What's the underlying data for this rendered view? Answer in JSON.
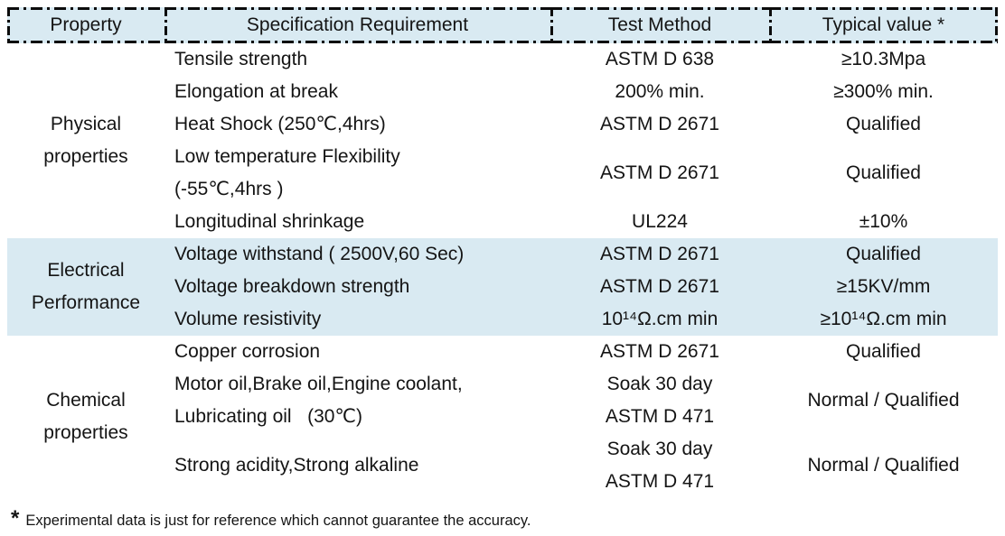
{
  "header": {
    "columns": [
      "Property",
      "Specification Requirement",
      "Test Method",
      "Typical value *"
    ]
  },
  "sections": [
    {
      "property": "Physical\nproperties",
      "highlighted": false,
      "rows": [
        {
          "spec": "Tensile strength",
          "method": "ASTM D 638",
          "value": "≥10.3Mpa"
        },
        {
          "spec": "Elongation at break",
          "method": "200% min.",
          "value": "≥300% min."
        },
        {
          "spec": "Heat Shock (250℃,4hrs)",
          "method": "ASTM D 2671",
          "value": "Qualified"
        },
        {
          "spec": "Low temperature Flexibility\n(-55℃,4hrs )",
          "method": "ASTM D 2671",
          "value": "Qualified"
        },
        {
          "spec": "Longitudinal shrinkage",
          "method": "UL224",
          "value": "±10%"
        }
      ]
    },
    {
      "property": "Electrical\nPerformance",
      "highlighted": true,
      "rows": [
        {
          "spec": "Voltage withstand ( 2500V,60 Sec)",
          "method": "ASTM D 2671",
          "value": "Qualified"
        },
        {
          "spec": "Voltage breakdown strength",
          "method": "ASTM D 2671",
          "value": "≥15KV/mm"
        },
        {
          "spec": "Volume resistivity",
          "method": "10¹⁴Ω.cm min",
          "value": "≥10¹⁴Ω.cm min"
        }
      ]
    },
    {
      "property": "Chemical\nproperties",
      "highlighted": false,
      "rows": [
        {
          "spec": "Copper corrosion",
          "method": "ASTM D 2671",
          "value": "Qualified"
        },
        {
          "spec": "Motor oil,Brake oil,Engine coolant,\nLubricating oil   (30℃)",
          "method": "Soak 30 day\nASTM D 471",
          "value": "Normal / Qualified"
        },
        {
          "spec": "Strong acidity,Strong alkaline",
          "method": "Soak 30 day\nASTM D 471",
          "value": "Normal / Qualified"
        }
      ]
    }
  ],
  "footnote": {
    "marker": "*",
    "text": "Experimental data is just for reference which cannot guarantee the accuracy."
  },
  "colors": {
    "header_bg": "#d9eaf2",
    "highlight_bg": "#d9eaf2",
    "border": "#0c0c0c",
    "text": "#141414"
  }
}
